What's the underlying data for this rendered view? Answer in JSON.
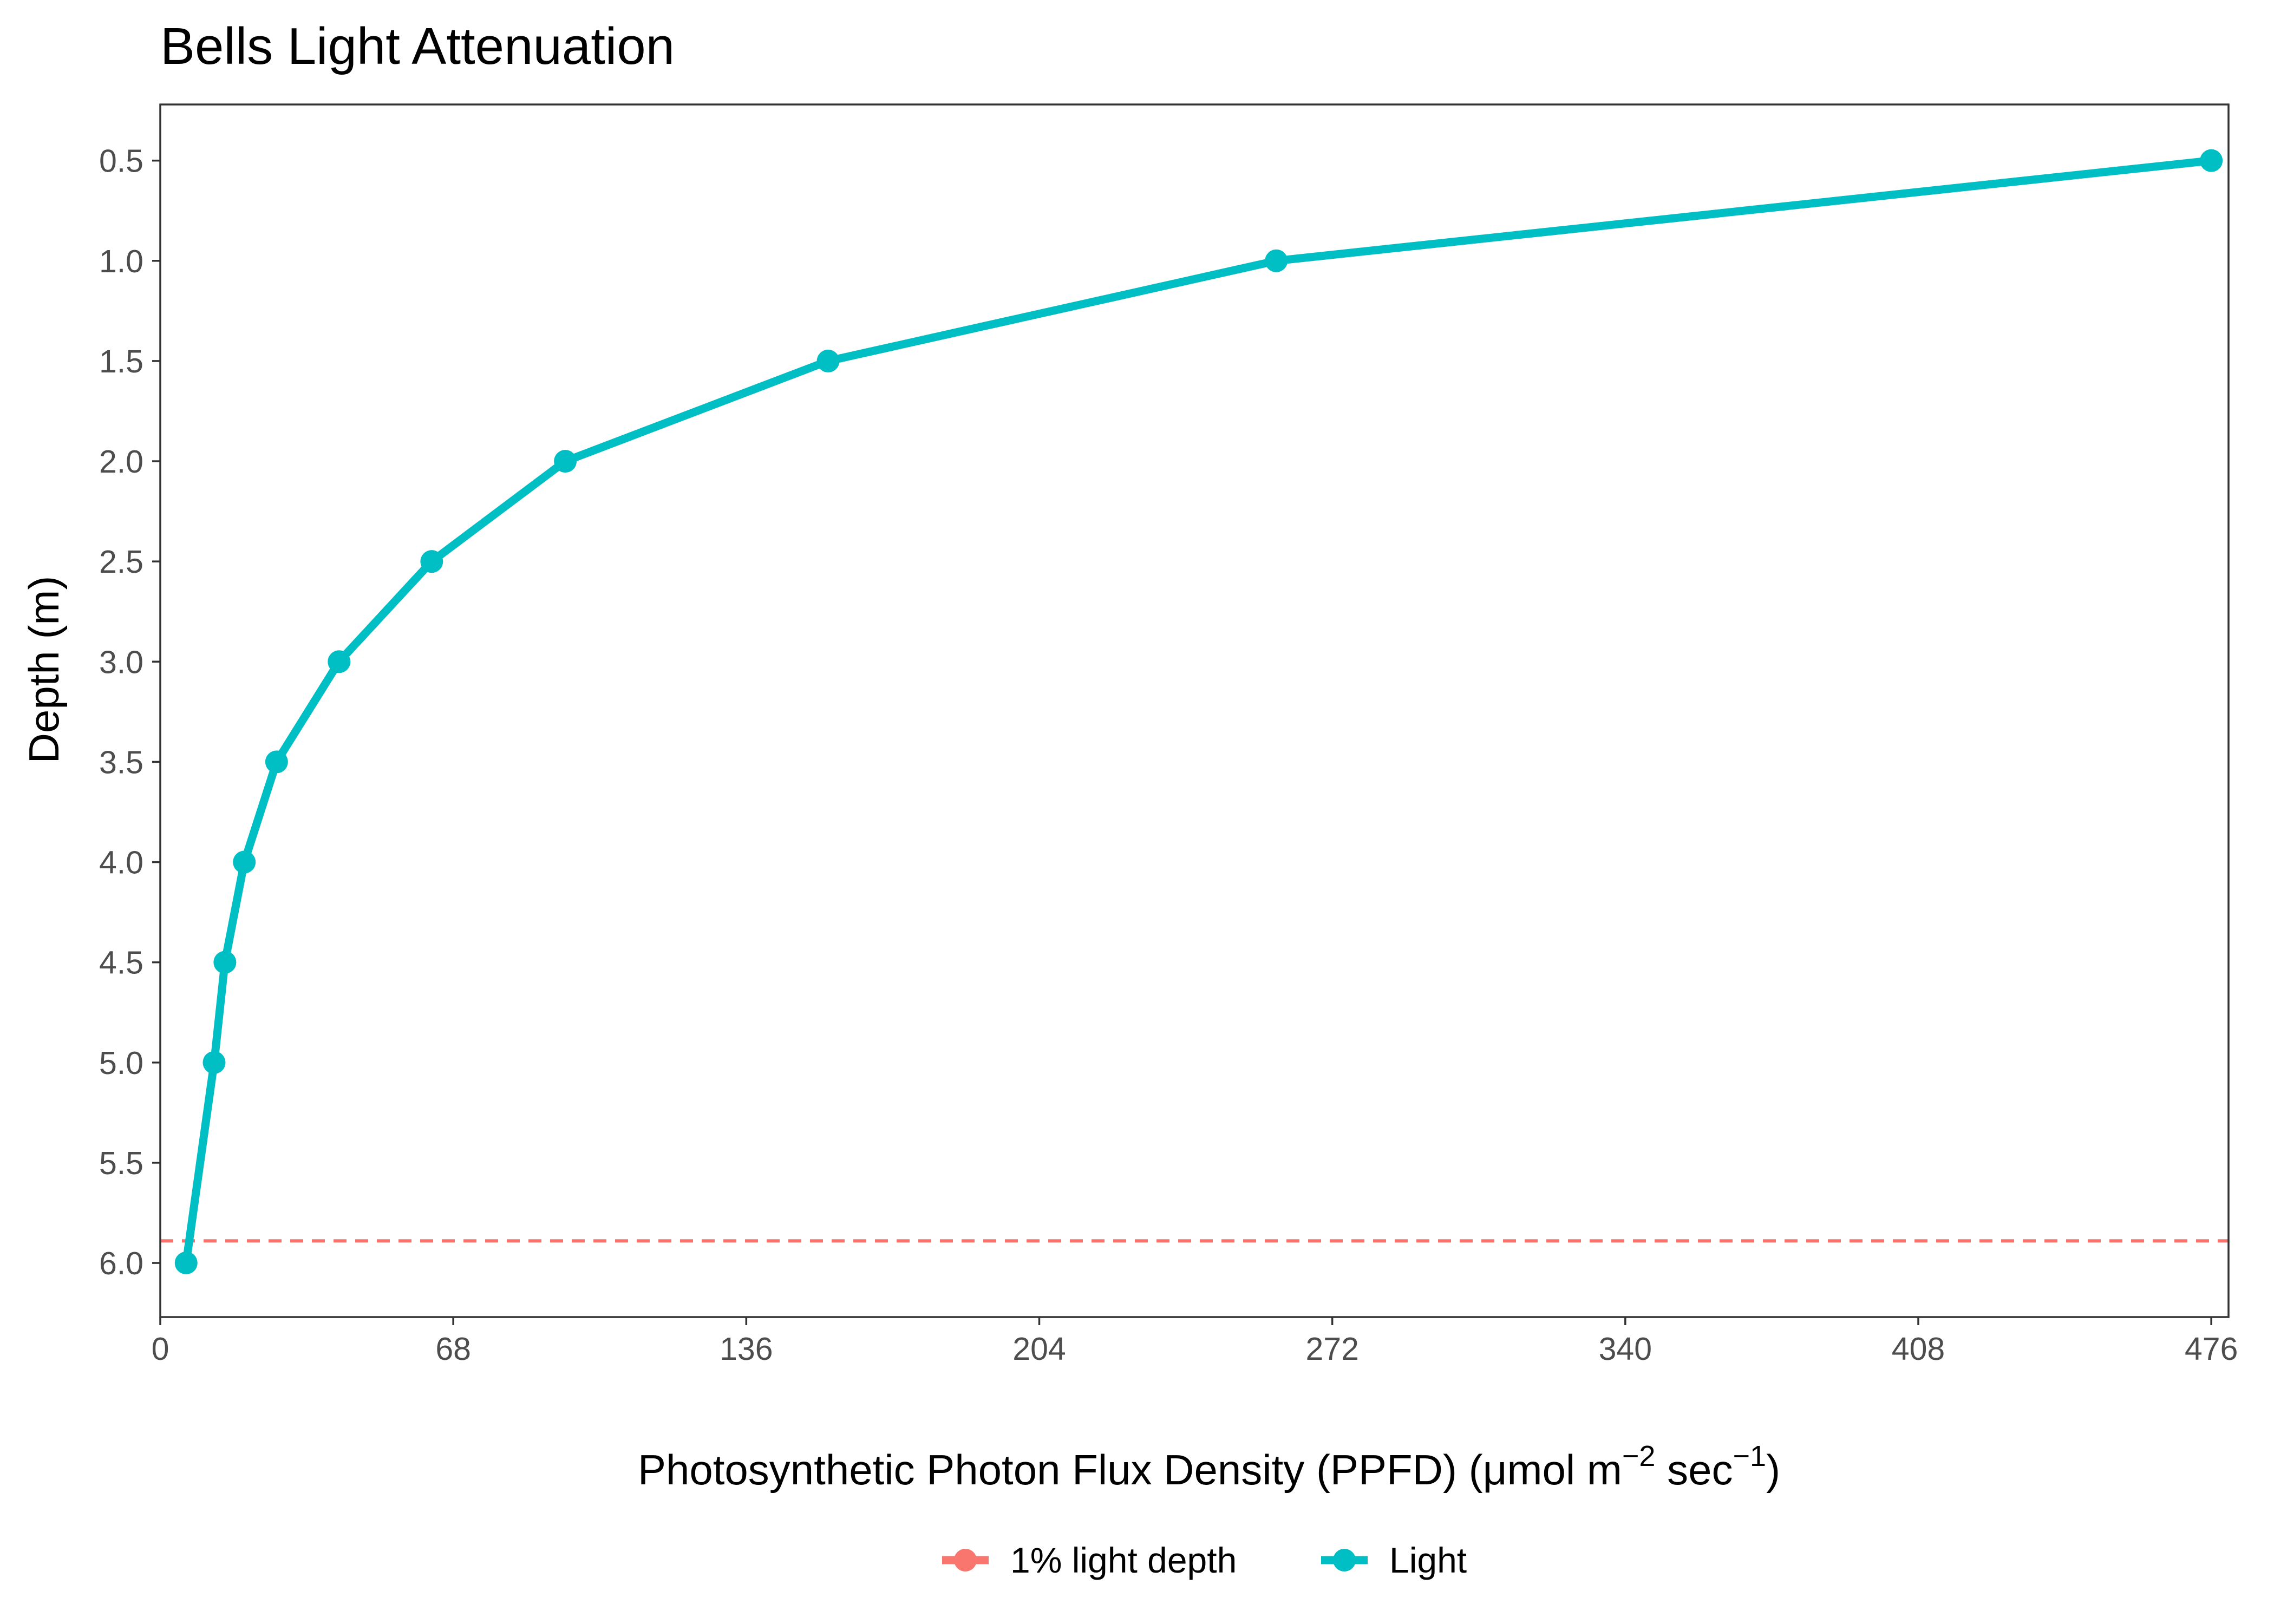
{
  "chart_data": {
    "type": "line",
    "title": "Bells Light Attenuation",
    "xlabel": "Photosynthetic Photon Flux Density (PPFD) (μmol m",
    "xlabel_sup1": "−2",
    "xlabel_mid": " sec",
    "xlabel_sup2": "−1",
    "xlabel_end": ")",
    "ylabel": "Depth (m)",
    "xlim": [
      0,
      480
    ],
    "ylim": [
      6.27,
      0.22
    ],
    "y_reversed": true,
    "x_ticks": [
      0,
      68,
      136,
      204,
      272,
      340,
      408,
      476
    ],
    "x_tick_labels": [
      "0",
      "68",
      "136",
      "204",
      "272",
      "340",
      "408",
      "476"
    ],
    "y_ticks": [
      0.5,
      1.0,
      1.5,
      2.0,
      2.5,
      3.0,
      3.5,
      4.0,
      4.5,
      5.0,
      5.5,
      6.0
    ],
    "y_tick_labels": [
      "0.5",
      "1.0",
      "1.5",
      "2.0",
      "2.5",
      "3.0",
      "3.5",
      "4.0",
      "4.5",
      "5.0",
      "5.5",
      "6.0"
    ],
    "grid": false,
    "legend_position": "bottom",
    "series": [
      {
        "name": "Light",
        "color": "#00BFC4",
        "points": [
          {
            "ppfd": 476.0,
            "depth": 0.5
          },
          {
            "ppfd": 259.0,
            "depth": 1.0
          },
          {
            "ppfd": 155.0,
            "depth": 1.5
          },
          {
            "ppfd": 94.0,
            "depth": 2.0
          },
          {
            "ppfd": 63.0,
            "depth": 2.5
          },
          {
            "ppfd": 41.5,
            "depth": 3.0
          },
          {
            "ppfd": 27.0,
            "depth": 3.5
          },
          {
            "ppfd": 19.5,
            "depth": 4.0
          },
          {
            "ppfd": 15.0,
            "depth": 4.5
          },
          {
            "ppfd": 12.5,
            "depth": 5.0
          },
          {
            "ppfd": 6.0,
            "depth": 6.0
          }
        ]
      }
    ],
    "reference_lines": [
      {
        "name": "1% light depth",
        "type": "horizontal",
        "depth": 5.89,
        "color": "#F8766D",
        "style": "dashed"
      }
    ],
    "legend": [
      {
        "label": "1% light depth",
        "color": "#F8766D"
      },
      {
        "label": "Light",
        "color": "#00BFC4"
      }
    ]
  }
}
